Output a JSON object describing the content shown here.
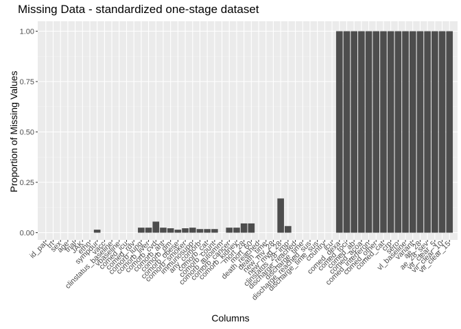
{
  "chart_data": {
    "type": "bar",
    "title": "Missing Data - standardized one-stage dataset",
    "xlabel": "Columns",
    "ylabel": "Proportion of Missing Values",
    "ylim": [
      0,
      1
    ],
    "yticks": [
      "0.00",
      "0.25",
      "0.50",
      "0.75",
      "1.00"
    ],
    "grid": true,
    "legend": "none",
    "bar_color": "#4d4d4d",
    "panel_color": "#ebebeb",
    "categories": [
      "id_pat",
      "trt",
      "sex",
      "age",
      "trial",
      "JAK",
      "ethn",
      "sympdur",
      "vacc",
      "clinstatus_baseline",
      "vbaseline",
      "comed_icu",
      "comed_rdv",
      "comorb_lung",
      "comorb_liver",
      "comorb_cvd",
      "comorb_aht",
      "comorb_dm",
      "comorb_obese",
      "comorb_smoker",
      "immunosupp",
      "any_comorb",
      "comorb_cat",
      "comorb_count",
      "comorb_autoimm",
      "comorb_cancer",
      "comorb_kidney",
      "mort_28",
      "mort_60",
      "death_reached",
      "death_time",
      "new_mv_28",
      "new_mvd_28",
      "clinstatus_28_imp",
      "discharge_reached",
      "discharge_time",
      "discharge_reached_sus",
      "discharge_time_sus",
      "country",
      "icu",
      "comed_dexa",
      "comed_toci",
      "comed_ab",
      "comed_acoa",
      "comed_interferon",
      "comed_other",
      "comed_cat",
      "crp",
      "sero",
      "vl_baseline",
      "variant",
      "ae_28",
      "ae_28_sev",
      "vir_clear_5",
      "vir_clear_10",
      "vir_clear_15"
    ],
    "values": [
      0,
      0,
      0,
      0,
      0,
      0,
      0,
      0.015,
      0,
      0,
      0,
      0,
      0,
      0.025,
      0.025,
      0.055,
      0.025,
      0.022,
      0.015,
      0.022,
      0.025,
      0.018,
      0.018,
      0.018,
      0,
      0.025,
      0.025,
      0.046,
      0.046,
      0,
      0,
      0,
      0.17,
      0.033,
      0,
      0,
      0,
      0,
      0,
      0,
      1,
      1,
      1,
      1,
      1,
      1,
      1,
      1,
      1,
      1,
      1,
      1,
      1,
      1,
      1,
      1
    ]
  }
}
